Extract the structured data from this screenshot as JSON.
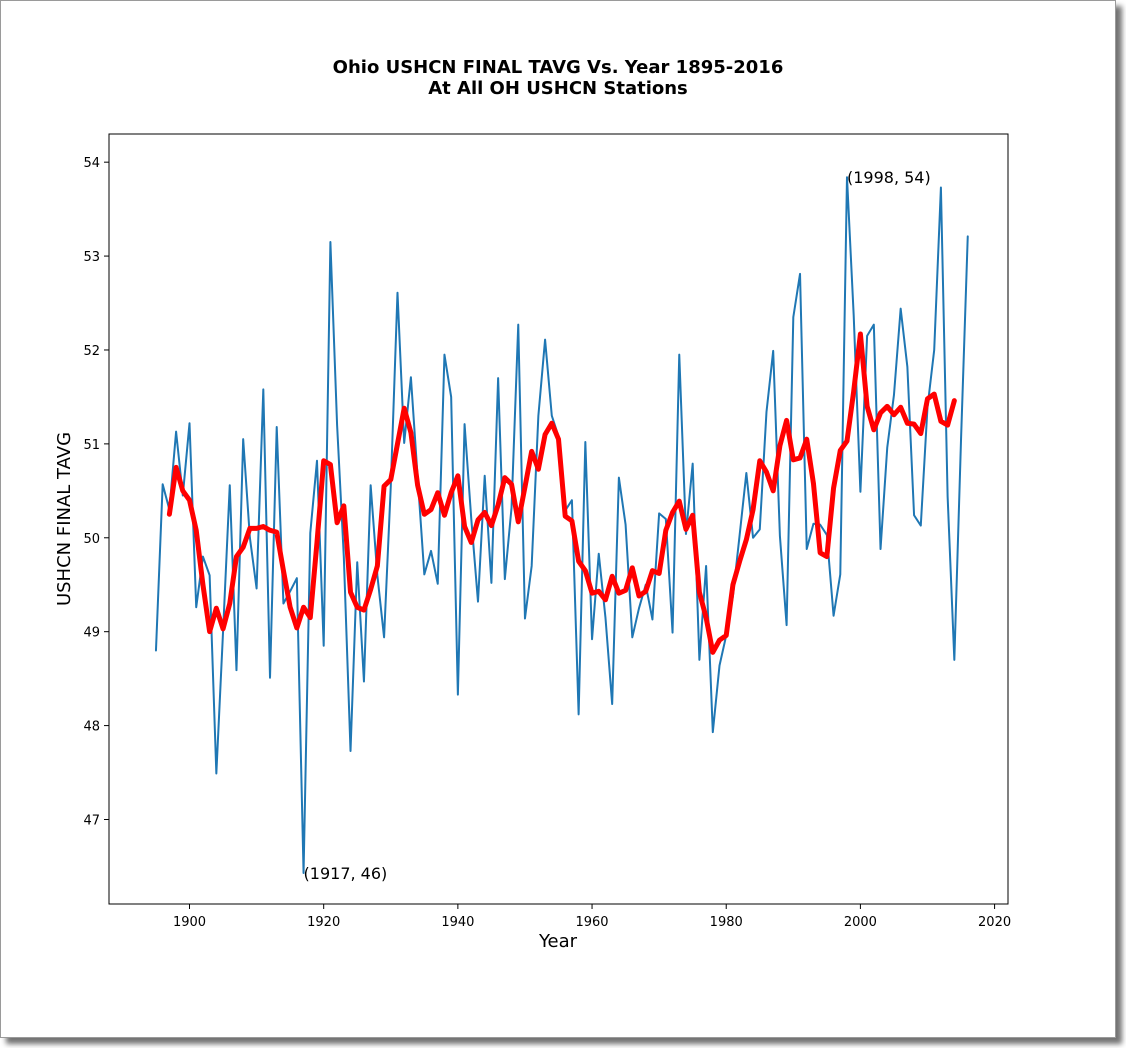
{
  "chart_data": {
    "type": "line",
    "title": "Ohio USHCN FINAL TAVG Vs. Year 1895-2016",
    "subtitle": "At All OH USHCN Stations",
    "xlabel": "Year",
    "ylabel": "USHCN FINAL TAVG",
    "xlim": [
      1888,
      2022
    ],
    "ylim": [
      46.1,
      54.3
    ],
    "xticks": [
      1900,
      1920,
      1940,
      1960,
      1980,
      2000,
      2020
    ],
    "yticks": [
      47,
      48,
      49,
      50,
      51,
      52,
      53,
      54
    ],
    "grid": false,
    "series": [
      {
        "color": "#1f77b4",
        "linewidth": 2,
        "x": [
          1895,
          1896,
          1897,
          1898,
          1899,
          1900,
          1901,
          1902,
          1903,
          1904,
          1905,
          1906,
          1907,
          1908,
          1909,
          1910,
          1911,
          1912,
          1913,
          1914,
          1915,
          1916,
          1917,
          1918,
          1919,
          1920,
          1921,
          1922,
          1923,
          1924,
          1925,
          1926,
          1927,
          1928,
          1929,
          1930,
          1931,
          1932,
          1933,
          1934,
          1935,
          1936,
          1937,
          1938,
          1939,
          1940,
          1941,
          1942,
          1943,
          1944,
          1945,
          1946,
          1947,
          1948,
          1949,
          1950,
          1951,
          1952,
          1953,
          1954,
          1955,
          1956,
          1957,
          1958,
          1959,
          1960,
          1961,
          1962,
          1963,
          1964,
          1965,
          1966,
          1967,
          1968,
          1969,
          1970,
          1971,
          1972,
          1973,
          1974,
          1975,
          1976,
          1977,
          1978,
          1979,
          1980,
          1981,
          1982,
          1983,
          1984,
          1985,
          1986,
          1987,
          1988,
          1989,
          1990,
          1991,
          1992,
          1993,
          1994,
          1995,
          1996,
          1997,
          1998,
          1999,
          2000,
          2001,
          2002,
          2003,
          2004,
          2005,
          2006,
          2007,
          2008,
          2009,
          2010,
          2011,
          2012,
          2013,
          2014,
          2015,
          2016
        ],
        "y": [
          48.8,
          50.57,
          50.3,
          51.13,
          50.45,
          51.22,
          49.26,
          49.8,
          49.6,
          47.49,
          49.0,
          50.56,
          48.59,
          51.05,
          50.0,
          49.46,
          51.58,
          48.51,
          51.18,
          49.3,
          49.43,
          49.57,
          46.43,
          50.05,
          50.82,
          48.85,
          53.15,
          51.2,
          49.8,
          47.73,
          49.74,
          48.47,
          50.56,
          49.6,
          48.94,
          50.55,
          52.61,
          51.01,
          51.71,
          50.65,
          49.61,
          49.86,
          49.51,
          51.95,
          51.5,
          48.33,
          51.21,
          50.2,
          49.32,
          50.66,
          49.52,
          51.7,
          49.56,
          50.32,
          52.27,
          49.14,
          49.7,
          51.3,
          52.11,
          51.3,
          51.08,
          50.29,
          50.4,
          48.12,
          51.02,
          48.92,
          49.83,
          49.15,
          48.23,
          50.64,
          50.14,
          48.94,
          49.25,
          49.5,
          49.13,
          50.26,
          50.2,
          48.99,
          51.95,
          50.04,
          50.79,
          48.7,
          49.7,
          47.93,
          48.64,
          48.96,
          49.38,
          50.03,
          50.69,
          50.0,
          50.09,
          51.34,
          51.99,
          50.02,
          49.07,
          52.35,
          52.81,
          49.88,
          50.15,
          50.14,
          50.03,
          49.17,
          49.61,
          53.84,
          52.37,
          50.49,
          52.15,
          52.27,
          49.88,
          50.96,
          51.52,
          52.44,
          51.82,
          50.24,
          50.13,
          51.39,
          52.0,
          53.73,
          50.44,
          48.7,
          51.05,
          53.21
        ]
      },
      {
        "color": "#ff0000",
        "linewidth": 5,
        "x": [
          1897,
          1898,
          1899,
          1900,
          1901,
          1902,
          1903,
          1904,
          1905,
          1906,
          1907,
          1908,
          1909,
          1910,
          1911,
          1912,
          1913,
          1914,
          1915,
          1916,
          1917,
          1918,
          1919,
          1920,
          1921,
          1922,
          1923,
          1924,
          1925,
          1926,
          1927,
          1928,
          1929,
          1930,
          1931,
          1932,
          1933,
          1934,
          1935,
          1936,
          1937,
          1938,
          1939,
          1940,
          1941,
          1942,
          1943,
          1944,
          1945,
          1946,
          1947,
          1948,
          1949,
          1950,
          1951,
          1952,
          1953,
          1954,
          1955,
          1956,
          1957,
          1958,
          1959,
          1960,
          1961,
          1962,
          1963,
          1964,
          1965,
          1966,
          1967,
          1968,
          1969,
          1970,
          1971,
          1972,
          1973,
          1974,
          1975,
          1976,
          1977,
          1978,
          1979,
          1980,
          1981,
          1982,
          1983,
          1984,
          1985,
          1986,
          1987,
          1988,
          1989,
          1990,
          1991,
          1992,
          1993,
          1994,
          1995,
          1996,
          1997,
          1998,
          1999,
          2000,
          2001,
          2002,
          2003,
          2004,
          2005,
          2006,
          2007,
          2008,
          2009,
          2010,
          2011,
          2012,
          2013,
          2014
        ],
        "y": [
          50.25,
          50.75,
          50.5,
          50.4,
          50.08,
          49.5,
          49.0,
          49.25,
          49.03,
          49.3,
          49.8,
          49.9,
          50.1,
          50.1,
          50.12,
          50.08,
          50.06,
          49.65,
          49.26,
          49.04,
          49.26,
          49.15,
          49.95,
          50.82,
          50.78,
          50.16,
          50.34,
          49.42,
          49.26,
          49.23,
          49.45,
          49.7,
          50.55,
          50.62,
          51.0,
          51.38,
          51.12,
          50.56,
          50.25,
          50.3,
          50.48,
          50.24,
          50.48,
          50.66,
          50.12,
          49.95,
          50.19,
          50.27,
          50.13,
          50.35,
          50.64,
          50.57,
          50.17,
          50.54,
          50.92,
          50.73,
          51.1,
          51.22,
          51.05,
          50.23,
          50.18,
          49.75,
          49.65,
          49.41,
          49.43,
          49.34,
          49.59,
          49.41,
          49.44,
          49.68,
          49.38,
          49.43,
          49.65,
          49.62,
          50.08,
          50.27,
          50.39,
          50.09,
          50.24,
          49.42,
          49.15,
          48.78,
          48.91,
          48.96,
          49.5,
          49.75,
          49.98,
          50.3,
          50.82,
          50.7,
          50.5,
          50.98,
          51.25,
          50.83,
          50.85,
          51.05,
          50.58,
          49.84,
          49.8,
          50.53,
          50.93,
          51.03,
          51.56,
          52.17,
          51.4,
          51.15,
          51.33,
          51.4,
          51.31,
          51.39,
          51.22,
          51.21,
          51.11,
          51.48,
          51.53,
          51.24,
          51.2,
          51.46
        ]
      }
    ],
    "annotations": [
      {
        "text": "(1998, 54)",
        "x": 1998,
        "y": 53.84
      },
      {
        "text": "(1917, 46)",
        "x": 1917,
        "y": 46.43
      }
    ]
  }
}
